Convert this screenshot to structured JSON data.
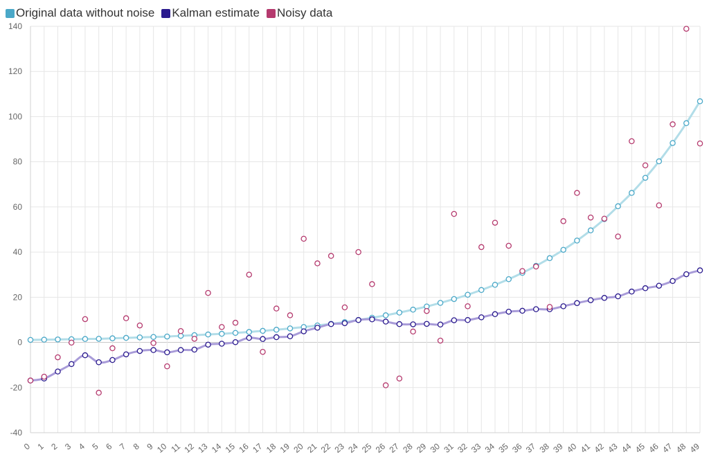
{
  "colors": {
    "original": "#4aa8c8",
    "original_line": "#b2dde8",
    "kalman": "#2a1a8e",
    "kalman_line": "#a89bd8",
    "noisy": "#b53a6e",
    "grid": "#e6e6e6",
    "zero": "#c8c8c8"
  },
  "legend": [
    {
      "label": "Original data without noise",
      "icon": "legend-swatch-original"
    },
    {
      "label": "Kalman estimate",
      "icon": "legend-swatch-kalman"
    },
    {
      "label": "Noisy data",
      "icon": "legend-swatch-noisy"
    }
  ],
  "chart_data": {
    "type": "line",
    "title": "",
    "xlabel": "",
    "ylabel": "",
    "ylim": [
      -40,
      140
    ],
    "yticks": [
      140,
      120,
      100,
      80,
      60,
      40,
      20,
      0,
      -20,
      -40
    ],
    "x": [
      0,
      1,
      2,
      3,
      4,
      5,
      6,
      7,
      8,
      9,
      10,
      11,
      12,
      13,
      14,
      15,
      16,
      17,
      18,
      19,
      20,
      21,
      22,
      23,
      24,
      25,
      26,
      27,
      28,
      29,
      30,
      31,
      32,
      33,
      34,
      35,
      36,
      37,
      38,
      39,
      40,
      41,
      42,
      43,
      44,
      45,
      46,
      47,
      48,
      49
    ],
    "grid": true,
    "legend_position": "top-left",
    "series": [
      {
        "name": "Original data without noise",
        "kind": "line",
        "values": [
          1.1,
          1.2,
          1.3,
          1.4,
          1.5,
          1.6,
          1.8,
          2.0,
          2.2,
          2.4,
          2.6,
          2.9,
          3.2,
          3.5,
          3.8,
          4.2,
          4.6,
          5.1,
          5.6,
          6.2,
          6.8,
          7.5,
          8.2,
          9.0,
          9.9,
          10.9,
          12.0,
          13.2,
          14.5,
          15.9,
          17.5,
          19.2,
          21.1,
          23.2,
          25.5,
          28.0,
          30.8,
          33.9,
          37.3,
          41.0,
          45.1,
          49.6,
          54.6,
          60.3,
          66.2,
          72.9,
          80.2,
          88.3,
          97.1,
          106.8
        ]
      },
      {
        "name": "Kalman estimate",
        "kind": "line",
        "values": [
          -16.9,
          -16.0,
          -12.9,
          -9.6,
          -5.7,
          -8.8,
          -7.8,
          -5.3,
          -3.8,
          -3.4,
          -4.4,
          -3.4,
          -3.2,
          -1.0,
          -0.6,
          0.1,
          2.0,
          1.5,
          2.3,
          2.7,
          4.9,
          6.5,
          8.1,
          8.5,
          9.9,
          10.2,
          9.2,
          8.1,
          8.0,
          8.2,
          7.9,
          9.8,
          9.9,
          11.1,
          12.5,
          13.6,
          14.0,
          14.7,
          14.7,
          16.0,
          17.4,
          18.7,
          19.7,
          20.4,
          22.5,
          24.0,
          25.1,
          27.2,
          30.2,
          31.9
        ]
      },
      {
        "name": "Noisy data",
        "kind": "scatter",
        "values": [
          -16.9,
          -15.2,
          -6.6,
          -0.1,
          10.3,
          -22.3,
          -2.6,
          10.7,
          7.5,
          -0.3,
          -10.6,
          5.0,
          1.6,
          21.9,
          6.8,
          8.7,
          30.0,
          -4.2,
          15.0,
          12.0,
          45.9,
          35.0,
          38.3,
          15.5,
          40.0,
          25.8,
          -19.0,
          -16.0,
          4.8,
          13.9,
          0.8,
          56.9,
          16.0,
          42.2,
          53.0,
          42.8,
          31.6,
          33.6,
          15.7,
          53.7,
          66.2,
          55.3,
          54.8,
          46.9,
          89.1,
          78.4,
          60.7,
          96.6,
          138.9,
          88.1
        ]
      }
    ]
  }
}
